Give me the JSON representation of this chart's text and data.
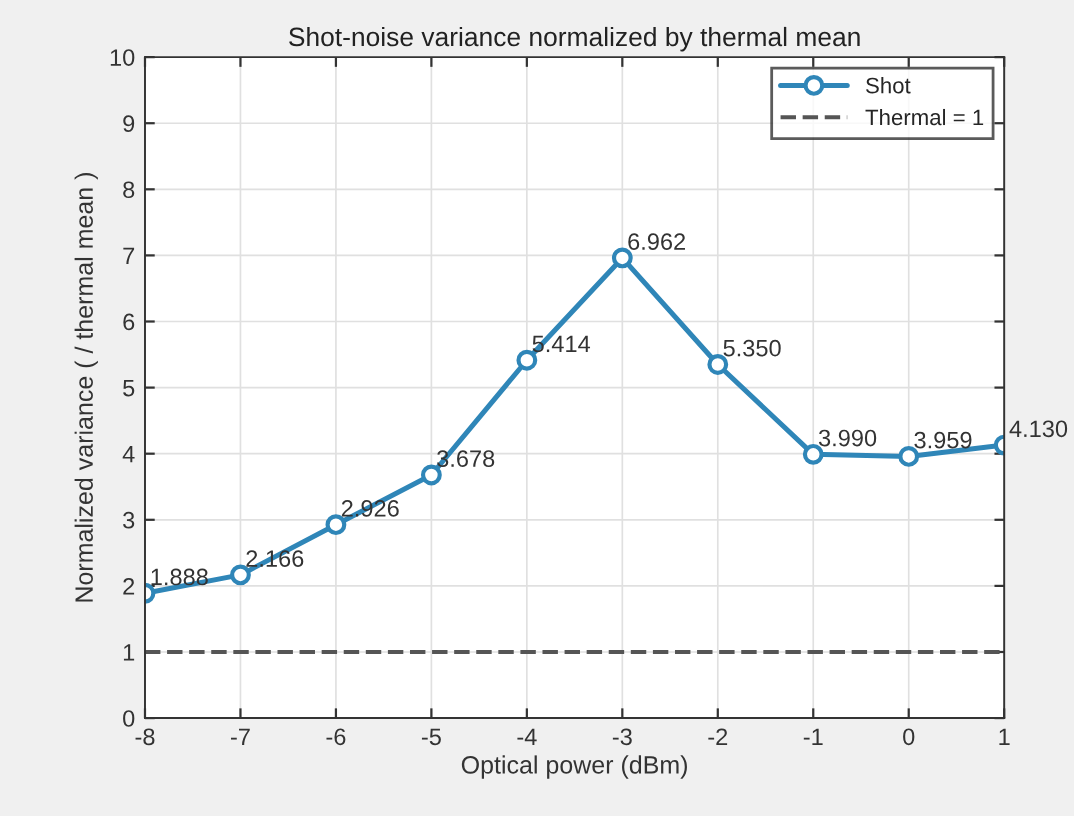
{
  "chart_data": {
    "type": "line",
    "title": "Shot-noise variance normalized by thermal mean",
    "xlabel": "Optical power (dBm)",
    "ylabel": "Normalized variance ( / thermal mean )",
    "x": [
      -8,
      -7,
      -6,
      -5,
      -4,
      -3,
      -2,
      -1,
      0,
      1
    ],
    "series": [
      {
        "name": "Shot",
        "color": "#2f86b8",
        "marker": "circle",
        "line_style": "solid",
        "values": [
          1.888,
          2.166,
          2.926,
          3.678,
          5.414,
          6.962,
          5.35,
          3.99,
          3.959,
          4.13
        ],
        "value_labels": [
          "1.888",
          "2.166",
          "2.926",
          "3.678",
          "5.414",
          "6.962",
          "5.350",
          "3.990",
          "3.959",
          "4.130"
        ]
      },
      {
        "name": "Thermal = 1",
        "color": "#555555",
        "marker": "none",
        "line_style": "dashed",
        "x": [
          -8,
          1
        ],
        "values": [
          1,
          1
        ]
      }
    ],
    "xlim": [
      -8,
      1
    ],
    "xticks": [
      -8,
      -7,
      -6,
      -5,
      -4,
      -3,
      -2,
      -1,
      0,
      1
    ],
    "ylim": [
      0,
      10
    ],
    "yticks": [
      0,
      1,
      2,
      3,
      4,
      5,
      6,
      7,
      8,
      9,
      10
    ],
    "grid": true,
    "legend": "top right"
  }
}
